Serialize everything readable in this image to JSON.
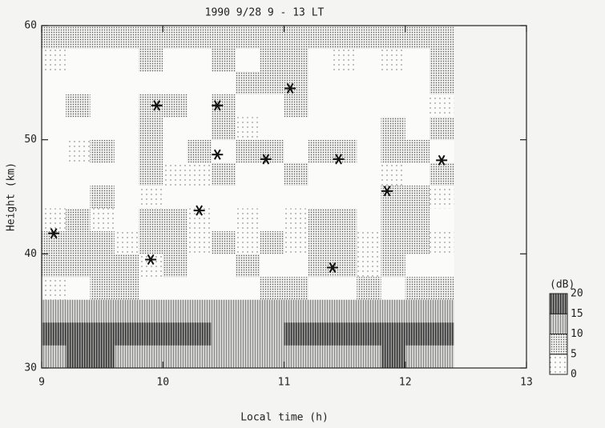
{
  "chart_data": {
    "type": "contour",
    "title": "1990   9/28    9 - 13 LT",
    "xlabel": "Local time (h)",
    "ylabel": "Height (km)",
    "xlim": [
      9,
      13
    ],
    "ylim": [
      30,
      60
    ],
    "xticks": [
      9,
      10,
      11,
      12,
      13
    ],
    "yticks": [
      30,
      40,
      50,
      60
    ],
    "x": [
      9.1,
      9.3,
      9.5,
      9.7,
      9.9,
      10.1,
      10.3,
      10.5,
      10.7,
      10.9,
      11.1,
      11.3,
      11.5,
      11.7,
      11.9,
      12.1,
      12.3
    ],
    "y": [
      31,
      33,
      35,
      37,
      39,
      41,
      43,
      45,
      47,
      49,
      51,
      53,
      55,
      57,
      59
    ],
    "z": [
      [
        12,
        15,
        15,
        14,
        13,
        12,
        12,
        12,
        13,
        12,
        12,
        13,
        12,
        13,
        15,
        12,
        12
      ],
      [
        16,
        17,
        16,
        17,
        15,
        16,
        17,
        13,
        12,
        14,
        15,
        16,
        15,
        16,
        17,
        16,
        15
      ],
      [
        11,
        11,
        10,
        11,
        11,
        10,
        11,
        11,
        10,
        11,
        11,
        10,
        10,
        10,
        11,
        10,
        10
      ],
      [
        2,
        -1,
        6,
        7,
        -1,
        -2,
        -2,
        -3,
        -1,
        7,
        6,
        -1,
        -2,
        6,
        -1,
        7,
        7
      ],
      [
        6,
        7,
        8,
        7,
        3,
        8,
        -1,
        -2,
        6,
        -1,
        -2,
        8,
        7,
        2,
        6,
        -2,
        -1
      ],
      [
        7,
        6,
        8,
        3,
        6,
        7,
        2,
        6,
        3,
        7,
        2,
        6,
        8,
        3,
        7,
        6,
        2
      ],
      [
        2,
        7,
        3,
        -1,
        6,
        8,
        2,
        -1,
        3,
        -1,
        2,
        7,
        6,
        -1,
        6,
        7,
        -1
      ],
      [
        -3,
        -2,
        6,
        -1,
        2,
        -3,
        -2,
        -1,
        -2,
        -1,
        -3,
        -2,
        -3,
        -2,
        7,
        6,
        2
      ],
      [
        -2,
        -1,
        -3,
        -2,
        6,
        3,
        2,
        6,
        -2,
        -1,
        6,
        -2,
        -1,
        -3,
        3,
        -1,
        6
      ],
      [
        -3,
        2,
        6,
        -1,
        6,
        -2,
        7,
        -1,
        7,
        6,
        -2,
        6,
        7,
        -3,
        6,
        7,
        -2
      ],
      [
        -3,
        -2,
        -1,
        -3,
        6,
        -1,
        -2,
        6,
        2,
        -3,
        -1,
        -2,
        -3,
        -3,
        6,
        -2,
        6
      ],
      [
        -1,
        7,
        -2,
        -3,
        6,
        6,
        -1,
        6,
        -1,
        -1,
        6,
        -2,
        -2,
        -3,
        -2,
        -3,
        3
      ],
      [
        -3,
        -2,
        -3,
        -2,
        -2,
        -1,
        -1,
        -1,
        6,
        6,
        7,
        -3,
        -2,
        -3,
        -1,
        -3,
        6
      ],
      [
        3,
        -1,
        -2,
        -1,
        6,
        -2,
        -2,
        6,
        -2,
        7,
        6,
        -1,
        3,
        -2,
        3,
        -2,
        6
      ],
      [
        6,
        7,
        6,
        7,
        8,
        6,
        7,
        6,
        6,
        7,
        8,
        6,
        7,
        6,
        7,
        7,
        6
      ]
    ],
    "markers": {
      "x": [
        9.1,
        9.9,
        9.95,
        10.45,
        10.45,
        10.3,
        10.85,
        11.05,
        11.45,
        11.4,
        11.85,
        12.3
      ],
      "y": [
        41.8,
        39.5,
        53,
        53,
        48.7,
        43.8,
        48.3,
        54.5,
        48.3,
        38.8,
        45.5,
        48.2
      ]
    },
    "colorbar_label": "(dB)",
    "clevels": [
      0,
      5,
      10,
      15,
      20
    ]
  }
}
